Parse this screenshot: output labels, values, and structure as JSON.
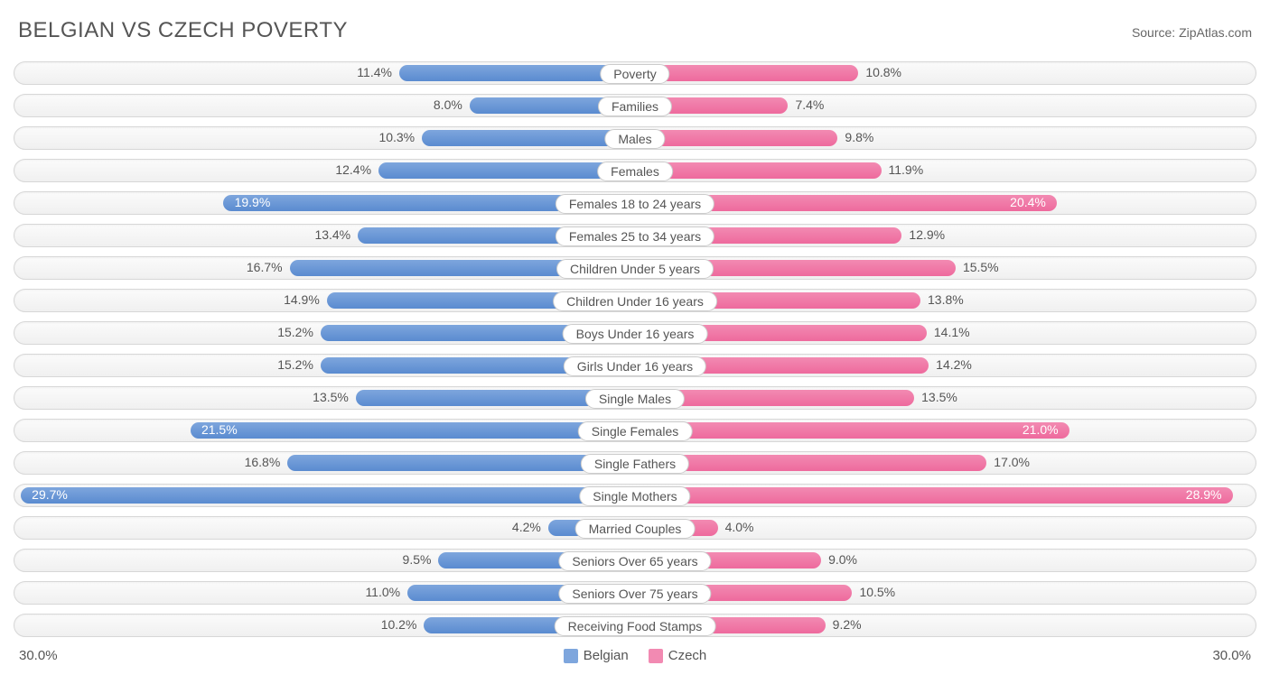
{
  "title": "BELGIAN VS CZECH POVERTY",
  "source": "Source: ZipAtlas.com",
  "axis_max": 30.0,
  "axis_left_label": "30.0%",
  "axis_right_label": "30.0%",
  "colors": {
    "belgian_fill": "#7ea6dd",
    "belgian_stroke": "#5a8bd0",
    "czech_fill": "#f28ab2",
    "czech_stroke": "#ee6a9d",
    "track_border": "#d7d7d7",
    "text": "#555555"
  },
  "legend": [
    {
      "label": "Belgian",
      "color": "#7ea6dd"
    },
    {
      "label": "Czech",
      "color": "#f28ab2"
    }
  ],
  "rows": [
    {
      "category": "Poverty",
      "belgian": 11.4,
      "czech": 10.8
    },
    {
      "category": "Families",
      "belgian": 8.0,
      "czech": 7.4
    },
    {
      "category": "Males",
      "belgian": 10.3,
      "czech": 9.8
    },
    {
      "category": "Females",
      "belgian": 12.4,
      "czech": 11.9
    },
    {
      "category": "Females 18 to 24 years",
      "belgian": 19.9,
      "czech": 20.4
    },
    {
      "category": "Females 25 to 34 years",
      "belgian": 13.4,
      "czech": 12.9
    },
    {
      "category": "Children Under 5 years",
      "belgian": 16.7,
      "czech": 15.5
    },
    {
      "category": "Children Under 16 years",
      "belgian": 14.9,
      "czech": 13.8
    },
    {
      "category": "Boys Under 16 years",
      "belgian": 15.2,
      "czech": 14.1
    },
    {
      "category": "Girls Under 16 years",
      "belgian": 15.2,
      "czech": 14.2
    },
    {
      "category": "Single Males",
      "belgian": 13.5,
      "czech": 13.5
    },
    {
      "category": "Single Females",
      "belgian": 21.5,
      "czech": 21.0
    },
    {
      "category": "Single Fathers",
      "belgian": 16.8,
      "czech": 17.0
    },
    {
      "category": "Single Mothers",
      "belgian": 29.7,
      "czech": 28.9
    },
    {
      "category": "Married Couples",
      "belgian": 4.2,
      "czech": 4.0
    },
    {
      "category": "Seniors Over 65 years",
      "belgian": 9.5,
      "czech": 9.0
    },
    {
      "category": "Seniors Over 75 years",
      "belgian": 11.0,
      "czech": 10.5
    },
    {
      "category": "Receiving Food Stamps",
      "belgian": 10.2,
      "czech": 9.2
    }
  ]
}
